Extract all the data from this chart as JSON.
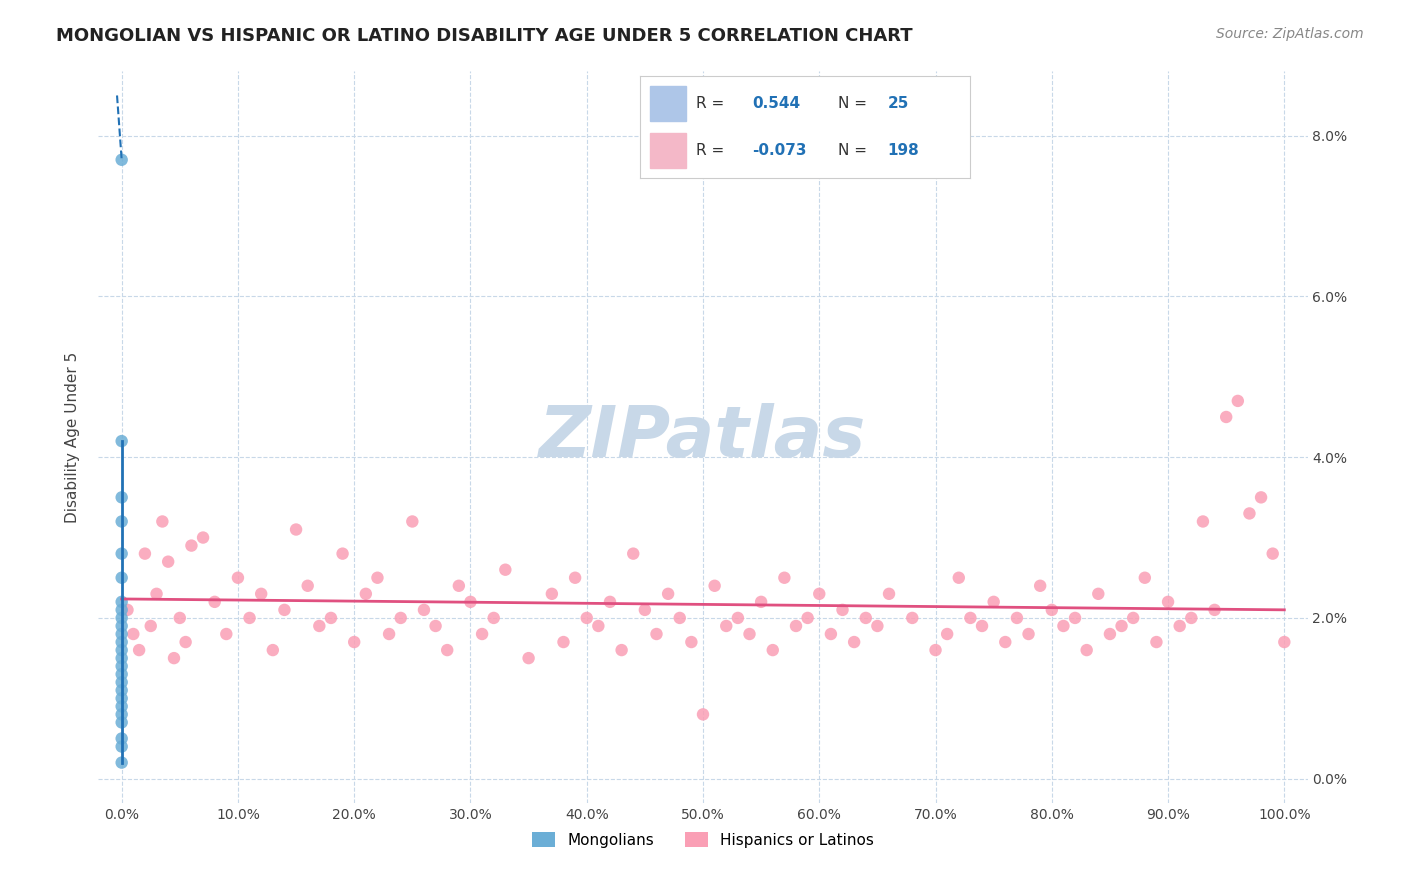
{
  "title": "MONGOLIAN VS HISPANIC OR LATINO DISABILITY AGE UNDER 5 CORRELATION CHART",
  "source": "Source: ZipAtlas.com",
  "ylabel": "Disability Age Under 5",
  "xlim": [
    -2,
    102
  ],
  "ylim": [
    -0.3,
    8.8
  ],
  "xticks": [
    0,
    10,
    20,
    30,
    40,
    50,
    60,
    70,
    80,
    90,
    100
  ],
  "yticks_right": [
    0,
    2,
    4,
    6,
    8
  ],
  "color_mongolian": "#6baed6",
  "color_hispanic": "#fa9fb5",
  "color_blue_line": "#2171b5",
  "color_pink_line": "#e05080",
  "background_color": "#ffffff",
  "grid_color": "#c8d8e8",
  "watermark_text": "ZIPatlas",
  "watermark_color": "#c8d8e8",
  "mongolian_x": [
    0.0,
    0.0,
    0.0,
    0.0,
    0.0,
    0.0,
    0.0,
    0.0,
    0.0,
    0.0,
    0.0,
    0.0,
    0.0,
    0.0,
    0.0,
    0.0,
    0.0,
    0.0,
    0.0,
    0.0,
    0.0,
    0.0,
    0.0,
    0.0,
    0.0
  ],
  "mongolian_y": [
    7.7,
    4.2,
    3.5,
    3.2,
    2.8,
    2.5,
    2.2,
    2.1,
    2.0,
    1.9,
    1.8,
    1.7,
    1.6,
    1.5,
    1.4,
    1.3,
    1.2,
    1.1,
    1.0,
    0.9,
    0.8,
    0.7,
    0.5,
    0.4,
    0.2
  ],
  "hispanic_x": [
    0.5,
    1.0,
    1.5,
    2.0,
    2.5,
    3.0,
    3.5,
    4.0,
    4.5,
    5.0,
    5.5,
    6.0,
    7.0,
    8.0,
    9.0,
    10.0,
    11.0,
    12.0,
    13.0,
    14.0,
    15.0,
    16.0,
    17.0,
    18.0,
    19.0,
    20.0,
    21.0,
    22.0,
    23.0,
    24.0,
    25.0,
    26.0,
    27.0,
    28.0,
    29.0,
    30.0,
    31.0,
    32.0,
    33.0,
    35.0,
    37.0,
    38.0,
    39.0,
    40.0,
    41.0,
    42.0,
    43.0,
    44.0,
    45.0,
    46.0,
    47.0,
    48.0,
    49.0,
    50.0,
    51.0,
    52.0,
    53.0,
    54.0,
    55.0,
    56.0,
    57.0,
    58.0,
    59.0,
    60.0,
    61.0,
    62.0,
    63.0,
    64.0,
    65.0,
    66.0,
    68.0,
    70.0,
    71.0,
    72.0,
    73.0,
    74.0,
    75.0,
    76.0,
    77.0,
    78.0,
    79.0,
    80.0,
    81.0,
    82.0,
    83.0,
    84.0,
    85.0,
    86.0,
    87.0,
    88.0,
    89.0,
    90.0,
    91.0,
    92.0,
    93.0,
    94.0,
    95.0,
    96.0,
    97.0,
    98.0,
    99.0,
    100.0
  ],
  "hispanic_y": [
    2.1,
    1.8,
    1.6,
    2.8,
    1.9,
    2.3,
    3.2,
    2.7,
    1.5,
    2.0,
    1.7,
    2.9,
    3.0,
    2.2,
    1.8,
    2.5,
    2.0,
    2.3,
    1.6,
    2.1,
    3.1,
    2.4,
    1.9,
    2.0,
    2.8,
    1.7,
    2.3,
    2.5,
    1.8,
    2.0,
    3.2,
    2.1,
    1.9,
    1.6,
    2.4,
    2.2,
    1.8,
    2.0,
    2.6,
    1.5,
    2.3,
    1.7,
    2.5,
    2.0,
    1.9,
    2.2,
    1.6,
    2.8,
    2.1,
    1.8,
    2.3,
    2.0,
    1.7,
    0.8,
    2.4,
    1.9,
    2.0,
    1.8,
    2.2,
    1.6,
    2.5,
    1.9,
    2.0,
    2.3,
    1.8,
    2.1,
    1.7,
    2.0,
    1.9,
    2.3,
    2.0,
    1.6,
    1.8,
    2.5,
    2.0,
    1.9,
    2.2,
    1.7,
    2.0,
    1.8,
    2.4,
    2.1,
    1.9,
    2.0,
    1.6,
    2.3,
    1.8,
    1.9,
    2.0,
    2.5,
    1.7,
    2.2,
    1.9,
    2.0,
    3.2,
    2.1,
    4.5,
    4.7,
    3.3,
    3.5,
    2.8,
    1.7
  ]
}
